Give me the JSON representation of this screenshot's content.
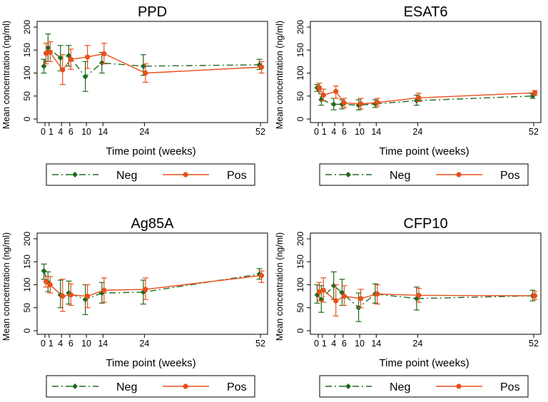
{
  "chart_data": [
    {
      "type": "line",
      "title": "PPD",
      "xlabel": "Time point (weeks)",
      "ylabel": "Mean concentration (ng/ml)",
      "xlim": [
        0,
        52
      ],
      "ylim": [
        0,
        200
      ],
      "x_ticks": [
        0,
        1,
        4,
        6,
        10,
        14,
        24,
        52
      ],
      "x_tick_labels": [
        "0",
        "1",
        "4",
        "6",
        "10",
        "14",
        "24",
        "52"
      ],
      "y_ticks": [
        0,
        50,
        100,
        150,
        200
      ],
      "y_tick_labels": [
        "0",
        "50",
        "100",
        "150",
        "200"
      ],
      "legend_position": "bottom",
      "series": [
        {
          "name": "Neg",
          "color": "#1f6b1f",
          "dash": "dashdot",
          "x": [
            0,
            1,
            4,
            6,
            10,
            14,
            24,
            52
          ],
          "values": [
            115,
            155,
            133,
            138,
            92,
            122,
            115,
            118
          ],
          "lower": [
            100,
            125,
            105,
            115,
            60,
            100,
            95,
            108
          ],
          "upper": [
            130,
            185,
            160,
            160,
            125,
            145,
            140,
            130
          ]
        },
        {
          "name": "Pos",
          "color": "#e8501a",
          "dash": "solid",
          "x": [
            0,
            1,
            4,
            6,
            10,
            14,
            24,
            52
          ],
          "values": [
            143,
            145,
            107,
            130,
            135,
            142,
            100,
            113
          ],
          "lower": [
            120,
            125,
            75,
            108,
            110,
            120,
            80,
            100
          ],
          "upper": [
            165,
            168,
            140,
            152,
            160,
            165,
            120,
            125
          ]
        }
      ]
    },
    {
      "type": "line",
      "title": "ESAT6",
      "xlabel": "Time point (weeks)",
      "ylabel": "Mean concentration (ng/ml)",
      "xlim": [
        0,
        52
      ],
      "ylim": [
        0,
        200
      ],
      "x_ticks": [
        0,
        1,
        4,
        6,
        10,
        14,
        24,
        52
      ],
      "x_tick_labels": [
        "0",
        "1",
        "4",
        "6",
        "10",
        "14",
        "24",
        "52"
      ],
      "y_ticks": [
        0,
        50,
        100,
        150,
        200
      ],
      "y_tick_labels": [
        "0",
        "50",
        "100",
        "150",
        "200"
      ],
      "legend_position": "bottom",
      "series": [
        {
          "name": "Neg",
          "color": "#1f6b1f",
          "dash": "dashdot",
          "x": [
            0,
            1,
            4,
            6,
            10,
            14,
            24,
            52
          ],
          "values": [
            68,
            42,
            32,
            32,
            30,
            33,
            40,
            50
          ],
          "lower": [
            60,
            30,
            20,
            22,
            20,
            25,
            30,
            45
          ],
          "upper": [
            75,
            55,
            45,
            42,
            42,
            42,
            52,
            55
          ]
        },
        {
          "name": "Pos",
          "color": "#e8501a",
          "dash": "solid",
          "x": [
            0,
            1,
            4,
            6,
            10,
            14,
            24,
            52
          ],
          "values": [
            68,
            52,
            60,
            35,
            33,
            36,
            46,
            57
          ],
          "lower": [
            60,
            40,
            45,
            25,
            22,
            28,
            38,
            52
          ],
          "upper": [
            78,
            65,
            72,
            45,
            45,
            45,
            56,
            62
          ]
        }
      ]
    },
    {
      "type": "line",
      "title": "Ag85A",
      "xlabel": "Time point (weeks)",
      "ylabel": "Mean concentration (ng/ml)",
      "xlim": [
        0,
        52
      ],
      "ylim": [
        0,
        200
      ],
      "x_ticks": [
        0,
        1,
        4,
        6,
        10,
        14,
        24,
        52
      ],
      "x_tick_labels": [
        "0",
        "1",
        "4",
        "6",
        "10",
        "14",
        "24",
        "52"
      ],
      "y_ticks": [
        0,
        50,
        100,
        150,
        200
      ],
      "y_tick_labels": [
        "0",
        "50",
        "100",
        "150",
        "200"
      ],
      "legend_position": "bottom",
      "series": [
        {
          "name": "Neg",
          "color": "#1f6b1f",
          "dash": "dashdot",
          "x": [
            0,
            1,
            4,
            6,
            10,
            14,
            24,
            52
          ],
          "values": [
            130,
            105,
            78,
            82,
            68,
            82,
            84,
            123
          ],
          "lower": [
            112,
            85,
            50,
            58,
            35,
            60,
            58,
            112
          ],
          "upper": [
            145,
            128,
            110,
            108,
            100,
            105,
            110,
            135
          ]
        },
        {
          "name": "Pos",
          "color": "#e8501a",
          "dash": "solid",
          "x": [
            0,
            1,
            4,
            6,
            10,
            14,
            24,
            52
          ],
          "values": [
            107,
            100,
            75,
            78,
            75,
            88,
            90,
            120
          ],
          "lower": [
            95,
            82,
            42,
            55,
            50,
            62,
            68,
            105
          ],
          "upper": [
            118,
            118,
            112,
            102,
            100,
            115,
            115,
            130
          ]
        }
      ]
    },
    {
      "type": "line",
      "title": "CFP10",
      "xlabel": "Time point (weeks)",
      "ylabel": "Mean concentration (ng/ml)",
      "xlim": [
        0,
        52
      ],
      "ylim": [
        0,
        200
      ],
      "x_ticks": [
        0,
        1,
        4,
        6,
        10,
        14,
        24,
        52
      ],
      "x_tick_labels": [
        "0",
        "1",
        "4",
        "6",
        "10",
        "14",
        "24",
        "52"
      ],
      "y_ticks": [
        0,
        50,
        100,
        150,
        200
      ],
      "y_tick_labels": [
        "0",
        "50",
        "100",
        "150",
        "200"
      ],
      "legend_position": "bottom",
      "series": [
        {
          "name": "Neg",
          "color": "#1f6b1f",
          "dash": "dashdot",
          "x": [
            0,
            1,
            4,
            6,
            10,
            14,
            24,
            52
          ],
          "values": [
            78,
            68,
            98,
            83,
            50,
            80,
            70,
            76
          ],
          "lower": [
            60,
            40,
            68,
            55,
            20,
            60,
            45,
            65
          ],
          "upper": [
            100,
            98,
            128,
            112,
            82,
            102,
            95,
            88
          ]
        },
        {
          "name": "Pos",
          "color": "#e8501a",
          "dash": "solid",
          "x": [
            0,
            1,
            4,
            6,
            10,
            14,
            24,
            52
          ],
          "values": [
            85,
            88,
            65,
            75,
            70,
            80,
            77,
            76
          ],
          "lower": [
            65,
            62,
            32,
            55,
            50,
            58,
            62,
            68
          ],
          "upper": [
            105,
            115,
            100,
            98,
            90,
            100,
            92,
            85
          ]
        }
      ]
    }
  ]
}
